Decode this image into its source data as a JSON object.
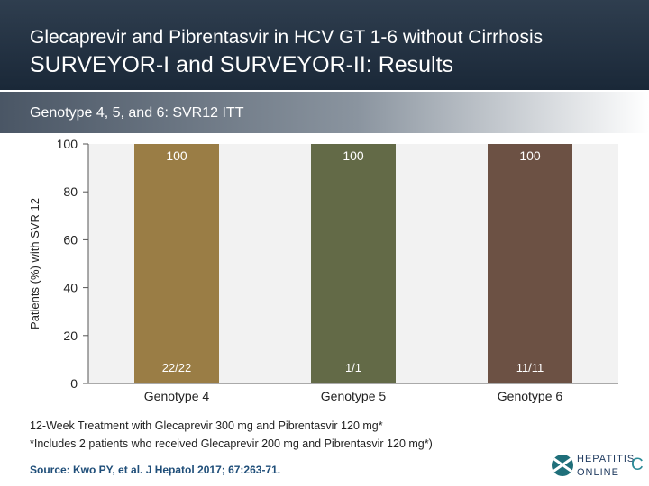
{
  "header": {
    "title_line1": "Glecaprevir and Pibrentasvir in HCV GT 1-6 without Cirrhosis",
    "title_line2": "SURVEYOR-I and SURVEYOR-II: Results"
  },
  "subheader": "Genotype 4, 5, and 6: SVR12 ITT",
  "chart_data": {
    "type": "bar",
    "categories": [
      "Genotype 4",
      "Genotype 5",
      "Genotype 6"
    ],
    "values": [
      100,
      100,
      100
    ],
    "value_labels": [
      "100",
      "100",
      "100"
    ],
    "n_labels": [
      "22/22",
      "1/1",
      "11/11"
    ],
    "ylabel": "Patients (%) with SVR 12",
    "ylim": [
      0,
      100
    ],
    "yticks": [
      0,
      20,
      40,
      60,
      80,
      100
    ],
    "colors": [
      "#9a7d45",
      "#636a47",
      "#6c5144"
    ],
    "plot_background": "#f2f2f2",
    "grid": false
  },
  "footnotes": [
    "12-Week Treatment with Glecaprevir 300 mg and Pibrentasvir 120 mg*",
    "*Includes 2 patients who received Glecaprevir 200 mg and Pibrentasvir 120 mg*)"
  ],
  "source": "Source: Kwo PY, et al. J Hepatol 2017; 67:263-71.",
  "logo": {
    "line1": "HEPATITIS",
    "line2": "ONLINE",
    "letter": "C",
    "icon": "hepatitis-c-online-logo-icon"
  }
}
